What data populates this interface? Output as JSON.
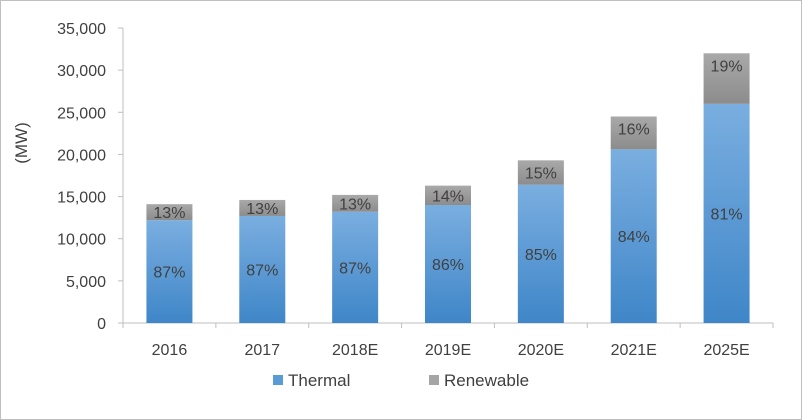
{
  "chart_data": {
    "type": "bar",
    "stacked": true,
    "categories": [
      "2016",
      "2017",
      "2018E",
      "2019E",
      "2020E",
      "2021E",
      "2025E"
    ],
    "series": [
      {
        "name": "Thermal",
        "color": "#5b9bd5",
        "values": [
          12200,
          12700,
          13200,
          14000,
          16400,
          20600,
          26000
        ],
        "labels": [
          "87%",
          "87%",
          "87%",
          "86%",
          "85%",
          "84%",
          "81%"
        ]
      },
      {
        "name": "Renewable",
        "color": "#a5a5a5",
        "values": [
          1900,
          1900,
          2000,
          2300,
          2900,
          3900,
          6000
        ],
        "labels": [
          "13%",
          "13%",
          "13%",
          "14%",
          "15%",
          "16%",
          "19%"
        ]
      }
    ],
    "title": "",
    "xlabel": "",
    "ylabel": "(MW)",
    "ylim": [
      0,
      35000
    ],
    "yticks": [
      0,
      5000,
      10000,
      15000,
      20000,
      25000,
      30000,
      35000
    ],
    "ytick_labels": [
      "0",
      "5,000",
      "10,000",
      "15,000",
      "20,000",
      "25,000",
      "30,000",
      "35,000"
    ],
    "grid": false,
    "legend": "bottom"
  }
}
